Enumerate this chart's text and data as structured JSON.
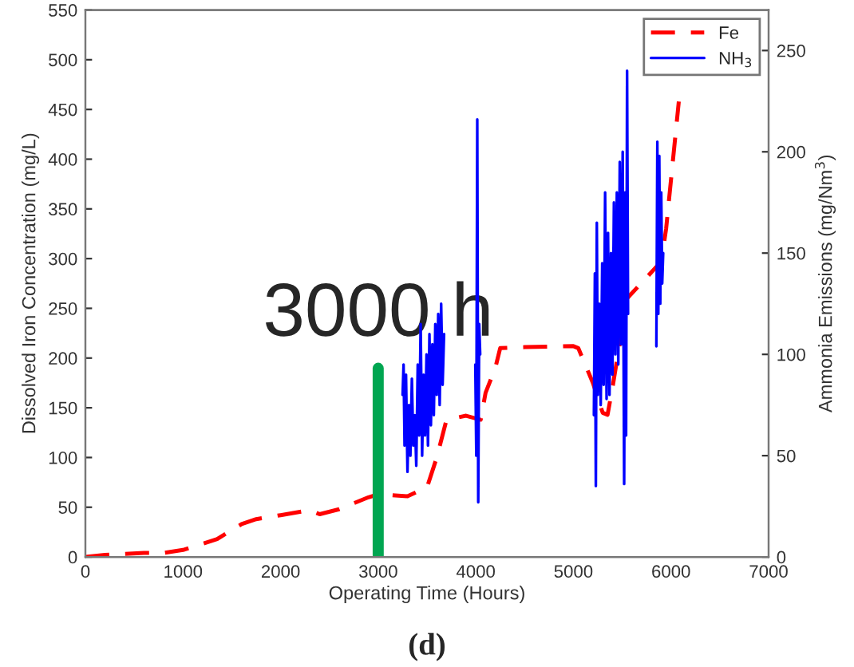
{
  "chart_data": {
    "type": "line",
    "xlabel": "Operating Time (Hours)",
    "ylabel": "Dissolved Iron Concentration (mg/L)",
    "y2label": "Ammonia Emissions (mg/Nm$^{3}$)",
    "xlim": [
      0,
      7000
    ],
    "xticks": [
      0,
      1000,
      2000,
      3000,
      4000,
      5000,
      6000,
      7000
    ],
    "ylim": [
      0,
      550
    ],
    "yticks": [
      0,
      50,
      100,
      150,
      200,
      250,
      300,
      350,
      400,
      450,
      500,
      550
    ],
    "y2lim": [
      0,
      270
    ],
    "y2ticks": [
      0,
      50,
      100,
      150,
      200,
      250
    ],
    "legend": "top right",
    "grid": false,
    "series": [
      {
        "name": "Fe",
        "color": "#ff0000",
        "line_style": "dashed",
        "x": [
          0,
          200,
          600,
          800,
          1000,
          1350,
          1600,
          1750,
          2000,
          2300,
          2400,
          2600,
          2900,
          3000,
          3300,
          3500,
          3600,
          3700,
          3900,
          4050,
          4100,
          4200,
          4250,
          4500,
          5000,
          5050,
          5200,
          5300,
          5350,
          5400,
          5550,
          5900,
          5950,
          6080
        ],
        "values": [
          0,
          2,
          4,
          4,
          7,
          18,
          33,
          38,
          42,
          47,
          43,
          48,
          60,
          63,
          61,
          70,
          100,
          138,
          142,
          138,
          165,
          190,
          210,
          211,
          212,
          210,
          175,
          145,
          143,
          170,
          260,
          297,
          330,
          458
        ]
      },
      {
        "name": "NH$_{3}$",
        "color": "#0000ff",
        "line_style": "solid",
        "axis": "y2",
        "x": [
          3250,
          3260,
          3270,
          3285,
          3300,
          3315,
          3330,
          3345,
          3360,
          3375,
          3390,
          3405,
          3420,
          3435,
          3450,
          3465,
          3480,
          3495,
          3510,
          3525,
          3540,
          3555,
          3570,
          3585,
          3600,
          3615,
          3630,
          3645,
          3660,
          3675,
          3800,
          3995,
          4005,
          4015,
          4025,
          4035,
          4045,
          4500,
          5210,
          5220,
          5230,
          5240,
          5250,
          5265,
          5280,
          5295,
          5310,
          5325,
          5340,
          5355,
          5370,
          5385,
          5400,
          5415,
          5430,
          5445,
          5460,
          5475,
          5490,
          5505,
          5520,
          5530,
          5540,
          5550,
          5560,
          5700,
          5850,
          5860,
          5870,
          5880,
          5890,
          5900,
          5910,
          5920
        ],
        "values": [
          80,
          95,
          55,
          90,
          42,
          75,
          50,
          88,
          55,
          70,
          45,
          95,
          60,
          115,
          50,
          90,
          60,
          100,
          55,
          110,
          65,
          105,
          70,
          115,
          80,
          120,
          75,
          125,
          85,
          110,
          null,
          95,
          50,
          216,
          27,
          115,
          100,
          null,
          70,
          140,
          35,
          165,
          80,
          125,
          75,
          145,
          85,
          180,
          78,
          160,
          80,
          150,
          90,
          175,
          100,
          180,
          95,
          195,
          105,
          200,
          36,
          180,
          60,
          240,
          120,
          null,
          104,
          205,
          120,
          198,
          125,
          180,
          135,
          150
        ]
      }
    ],
    "ref_lines": [
      {
        "axis": "x",
        "value": 3000,
        "label": "3000 h",
        "color": "#00a651"
      }
    ],
    "annotations": [
      "(d)"
    ]
  }
}
